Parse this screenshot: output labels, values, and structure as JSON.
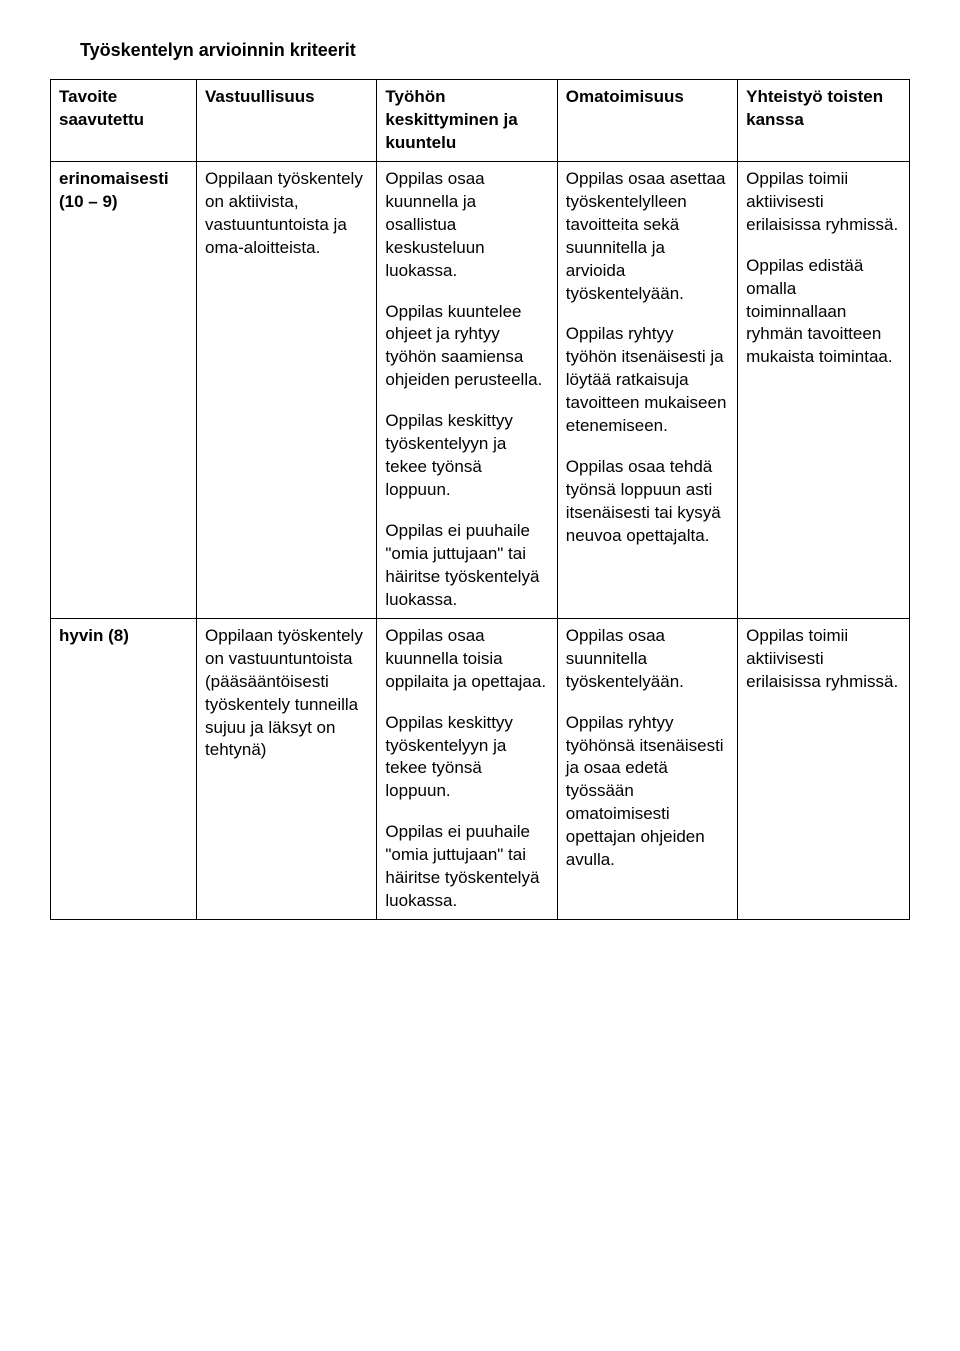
{
  "title": "Työskentelyn arvioinnin kriteerit",
  "headers": {
    "c0": "Tavoite saavutettu",
    "c1": "Vastuullisuus",
    "c2": "Työhön keskittyminen ja kuuntelu",
    "c3": "Omatoimisuus",
    "c4": "Yhteistyö toisten kanssa"
  },
  "rows": {
    "r1": {
      "label": "erinomaisesti (10 – 9)",
      "c1_p1": "Oppilaan työskentely on aktiivista, vastuuntuntoista ja oma-aloitteista.",
      "c2_p1": "Oppilas osaa kuunnella ja osallistua keskusteluun luokassa.",
      "c2_p2": "Oppilas kuuntelee ohjeet ja ryhtyy työhön saamiensa ohjeiden perusteella.",
      "c2_p3": "Oppilas keskittyy työskentelyyn ja tekee työnsä loppuun.",
      "c2_p4": "Oppilas ei puuhaile \"omia juttujaan\" tai häiritse työskentelyä luokassa.",
      "c3_p1": "Oppilas osaa asettaa työskentelylleen tavoitteita sekä suunnitella ja arvioida työskentelyään.",
      "c3_p2": "Oppilas ryhtyy työhön itsenäisesti ja löytää ratkaisuja tavoitteen mukaiseen etenemiseen.",
      "c3_p3": "Oppilas osaa tehdä työnsä loppuun asti itsenäisesti tai kysyä neuvoa opettajalta.",
      "c4_p1": "Oppilas toimii aktiivisesti erilaisissa ryhmissä.",
      "c4_p2": "Oppilas edistää omalla toiminnallaan ryhmän tavoitteen mukaista toimintaa."
    },
    "r2": {
      "label": "hyvin (8)",
      "c1_p1": "Oppilaan työskentely on vastuuntuntoista (pääsääntöisesti työskentely tunneilla sujuu ja läksyt on tehtynä)",
      "c2_p1": "Oppilas osaa kuunnella toisia oppilaita ja opettajaa.",
      "c2_p2": "Oppilas keskittyy työskentelyyn ja tekee työnsä loppuun.",
      "c2_p3": "Oppilas ei puuhaile \"omia juttujaan\" tai häiritse työskentelyä luokassa.",
      "c3_p1": "Oppilas osaa suunnitella työskentelyään.",
      "c3_p2": "Oppilas ryhtyy työhönsä itsenäisesti ja osaa edetä työssään omatoimisesti opettajan ohjeiden avulla.",
      "c4_p1": "Oppilas toimii aktiivisesti erilaisissa ryhmissä."
    }
  }
}
